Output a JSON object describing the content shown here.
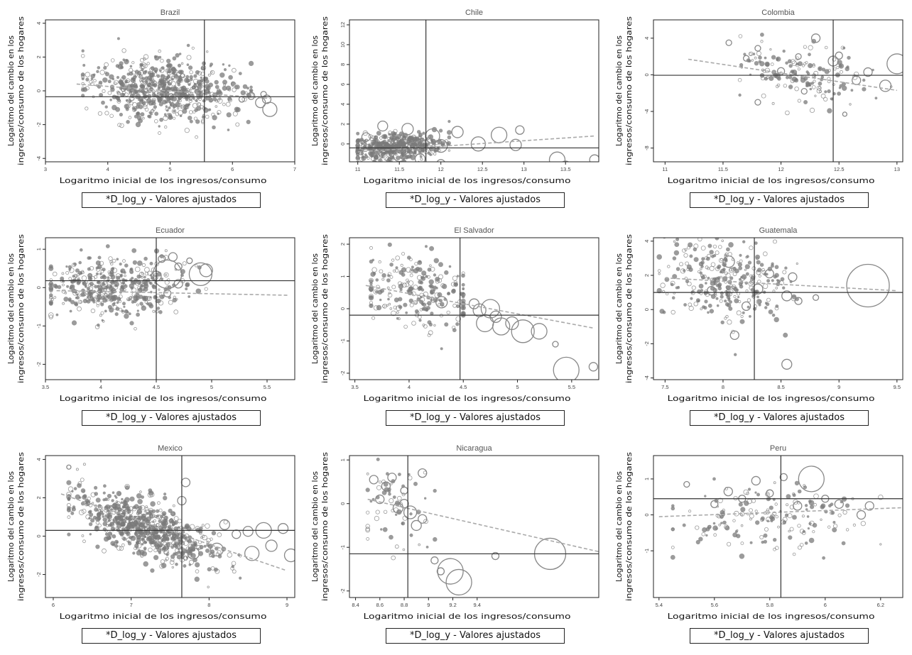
{
  "chart_data": [
    {
      "type": "scatter",
      "title": "Brazil",
      "xlabel": "Logaritmo inicial de los ingresos/consumo",
      "ylabel": "Logaritmo del cambio en los ingresos/consumo de los hogares",
      "legend": "*D_log_y -  Valores ajustados",
      "xlim": [
        3,
        7
      ],
      "ylim": [
        -4.2,
        4.2
      ],
      "xticks": [
        "3",
        "4",
        "5",
        "6",
        "7"
      ],
      "yticks": [
        "-4",
        "-2",
        "0",
        "2",
        "4"
      ],
      "vline": 5.55,
      "hline": -0.35,
      "fit": {
        "x": [
          3.5,
          6.6
        ],
        "y": [
          0.4,
          -0.45
        ]
      },
      "cloud": {
        "cx": 4.9,
        "cy": 0.1,
        "sx": 0.55,
        "sy": 0.9,
        "n": 650,
        "x0": 3.6,
        "x1": 6.3
      },
      "bubbles": [
        [
          6.15,
          -0.5,
          4
        ],
        [
          6.3,
          -0.3,
          5
        ],
        [
          6.45,
          -0.7,
          7
        ],
        [
          6.6,
          -1.1,
          10
        ],
        [
          6.5,
          -0.2,
          4
        ],
        [
          6.55,
          -0.5,
          6
        ]
      ],
      "grid": false,
      "legend_position": "bottom"
    },
    {
      "type": "scatter",
      "title": "Chile",
      "xlabel": "Logaritmo inicial de los ingresos/consumo",
      "ylabel": "Logaritmo del cambio en los ingresos/consumo de los hogares",
      "legend": "*D_log_y -  Valores ajustados",
      "xlim": [
        10.9,
        13.9
      ],
      "ylim": [
        -1.8,
        12.5
      ],
      "xticks": [
        "11",
        "11.5",
        "12",
        "12.5",
        "13",
        "13.5"
      ],
      "yticks": [
        "0",
        "2",
        "4",
        "6",
        "8",
        "10",
        "12"
      ],
      "vline": 11.82,
      "hline": -0.4,
      "fit": {
        "x": [
          11,
          13.85
        ],
        "y": [
          -0.8,
          0.8
        ]
      },
      "cloud": {
        "cx": 11.45,
        "cy": -0.3,
        "sx": 0.28,
        "sy": 0.7,
        "n": 450,
        "x0": 11,
        "x1": 12.1
      },
      "bubbles": [
        [
          11.3,
          1.8,
          7
        ],
        [
          11.6,
          1.5,
          8
        ],
        [
          11.9,
          0.8,
          10
        ],
        [
          12.0,
          -0.2,
          9
        ],
        [
          12.2,
          1.2,
          8
        ],
        [
          12.45,
          0.0,
          10
        ],
        [
          12.7,
          0.9,
          11
        ],
        [
          12.9,
          -0.1,
          8
        ],
        [
          12.95,
          1.4,
          6
        ],
        [
          12.0,
          -2.0,
          6
        ],
        [
          11.75,
          -1.5,
          7
        ],
        [
          13.4,
          -1.6,
          11
        ],
        [
          13.5,
          -2.3,
          8
        ],
        [
          13.85,
          -1.6,
          7
        ],
        [
          11.1,
          0.7,
          6
        ],
        [
          11.5,
          -1.2,
          8
        ]
      ],
      "grid": false,
      "legend_position": "bottom"
    },
    {
      "type": "scatter",
      "title": "Colombia",
      "xlabel": "Logaritmo inicial de los ingresos/consumo",
      "ylabel": "Logaritmo del cambio en los ingresos/consumo de los hogares",
      "legend": "*D_log_y -  Valores ajustados",
      "xlim": [
        10.9,
        13.05
      ],
      "ylim": [
        -9.5,
        6
      ],
      "xticks": [
        "11",
        "11.5",
        "12",
        "12.5",
        "13"
      ],
      "yticks": [
        "-8",
        "-4",
        "0",
        "4"
      ],
      "vline": 12.45,
      "hline": -0.05,
      "fit": {
        "x": [
          11.2,
          13.0
        ],
        "y": [
          1.7,
          -1.7
        ]
      },
      "cloud": {
        "cx": 12.2,
        "cy": 0,
        "sx": 0.3,
        "sy": 1.8,
        "n": 160,
        "x0": 11.55,
        "x1": 12.95
      },
      "bubbles": [
        [
          11.55,
          3.5,
          4
        ],
        [
          11.8,
          2.9,
          4
        ],
        [
          12.0,
          0.4,
          5
        ],
        [
          12.3,
          4.0,
          6
        ],
        [
          12.45,
          1.5,
          7
        ],
        [
          12.5,
          2.1,
          5
        ],
        [
          12.75,
          0.3,
          6
        ],
        [
          12.9,
          -1.2,
          8
        ],
        [
          13.0,
          1.2,
          14
        ],
        [
          11.8,
          -3.0,
          4
        ],
        [
          12.2,
          -1.8,
          4
        ],
        [
          12.55,
          -4.3,
          3
        ],
        [
          12.65,
          -0.6,
          6
        ],
        [
          12.15,
          2.0,
          4
        ],
        [
          11.7,
          1.8,
          4
        ]
      ],
      "grid": false,
      "legend_position": "bottom"
    },
    {
      "type": "scatter",
      "title": "Ecuador",
      "xlabel": "Logaritmo inicial de los ingresos/consumo",
      "ylabel": "Logaritmo del cambio en los ingresos/consumo de los hogares",
      "legend": "*D_log_y -  Valores ajustados",
      "xlim": [
        3.5,
        5.75
      ],
      "ylim": [
        -2.4,
        1.3
      ],
      "xticks": [
        "3.5",
        "4",
        "4.5",
        "5",
        "5.5"
      ],
      "yticks": [
        "-2",
        "-1",
        "0",
        "1"
      ],
      "vline": 4.5,
      "hline": 0.18,
      "fit": {
        "x": [
          3.6,
          5.7
        ],
        "y": [
          -0.08,
          -0.2
        ]
      },
      "cloud": {
        "cx": 4.1,
        "cy": 0.0,
        "sx": 0.32,
        "sy": 0.35,
        "n": 430,
        "x0": 3.55,
        "x1": 4.95
      },
      "bubbles": [
        [
          4.6,
          0.35,
          20
        ],
        [
          4.65,
          0.8,
          6
        ],
        [
          4.55,
          0.75,
          5
        ],
        [
          4.9,
          0.35,
          16
        ],
        [
          4.95,
          0.45,
          9
        ],
        [
          4.7,
          0.55,
          5
        ],
        [
          4.6,
          -0.15,
          5
        ],
        [
          4.8,
          0.7,
          4
        ],
        [
          4.5,
          0.3,
          7
        ],
        [
          4.7,
          0.1,
          6
        ]
      ],
      "grid": false,
      "legend_position": "bottom"
    },
    {
      "type": "scatter",
      "title": "El Salvador",
      "xlabel": "Logaritmo inicial de los ingresos/consumo",
      "ylabel": "Logaritmo del cambio en los ingresos/consumo de los hogares",
      "legend": "*D_log_y -  Valores ajustados",
      "xlim": [
        3.45,
        5.75
      ],
      "ylim": [
        -2.2,
        2.2
      ],
      "xticks": [
        "3.5",
        "4",
        "4.5",
        "5",
        "5.5"
      ],
      "yticks": [
        "-2",
        "-1",
        "0",
        "1",
        "2"
      ],
      "vline": 4.47,
      "hline": -0.2,
      "fit": {
        "x": [
          3.6,
          5.7
        ],
        "y": [
          0.72,
          -0.6
        ]
      },
      "cloud": {
        "cx": 4.1,
        "cy": 0.5,
        "sx": 0.28,
        "sy": 0.6,
        "n": 240,
        "x0": 3.65,
        "x1": 4.5
      },
      "bubbles": [
        [
          4.65,
          -0.05,
          9
        ],
        [
          4.75,
          0.0,
          13
        ],
        [
          4.7,
          -0.45,
          12
        ],
        [
          4.85,
          -0.55,
          12
        ],
        [
          4.95,
          -0.45,
          9
        ],
        [
          5.05,
          -0.7,
          16
        ],
        [
          5.2,
          -0.7,
          11
        ],
        [
          5.35,
          -1.1,
          4
        ],
        [
          5.45,
          -1.9,
          18
        ],
        [
          5.7,
          -1.8,
          6
        ],
        [
          4.3,
          0.2,
          8
        ],
        [
          4.6,
          0.15,
          7
        ],
        [
          4.8,
          -0.25,
          8
        ]
      ],
      "grid": false,
      "legend_position": "bottom"
    },
    {
      "type": "scatter",
      "title": "Guatemala",
      "xlabel": "Logaritmo inicial de los ingresos/consumo",
      "ylabel": "Logaritmo del cambio en los ingresos/consumo de los hogares",
      "legend": "*D_log_y -  Valores ajustados",
      "xlim": [
        7.4,
        9.55
      ],
      "ylim": [
        -4.1,
        4.2
      ],
      "xticks": [
        "7.5",
        "8",
        "8.5",
        "9",
        "9.5"
      ],
      "yticks": [
        "-4",
        "-2",
        "0",
        "2",
        "4"
      ],
      "vline": 8.27,
      "hline": 1.0,
      "fit": {
        "x": [
          7.5,
          9.5
        ],
        "y": [
          1.85,
          1.1
        ]
      },
      "cloud": {
        "cx": 8.0,
        "cy": 1.6,
        "sx": 0.28,
        "sy": 1.3,
        "n": 300,
        "x0": 7.45,
        "x1": 8.75
      },
      "bubbles": [
        [
          8.4,
          2.1,
          6
        ],
        [
          8.6,
          1.9,
          6
        ],
        [
          8.55,
          0.8,
          7
        ],
        [
          8.65,
          0.5,
          5
        ],
        [
          8.8,
          0.7,
          4
        ],
        [
          9.25,
          1.4,
          30
        ],
        [
          8.55,
          -3.2,
          7
        ],
        [
          8.1,
          -1.5,
          6
        ],
        [
          8.05,
          2.8,
          8
        ],
        [
          8.3,
          1.2,
          7
        ],
        [
          7.9,
          1.1,
          6
        ],
        [
          8.2,
          0.2,
          6
        ]
      ],
      "grid": false,
      "legend_position": "bottom"
    },
    {
      "type": "scatter",
      "title": "Mexico",
      "xlabel": "Logaritmo inicial de los ingresos/consumo",
      "ylabel": "Logaritmo del cambio en los ingresos/consumo de los hogares",
      "legend": "*D_log_y -  Valores ajustados",
      "xlim": [
        5.9,
        9.1
      ],
      "ylim": [
        -3.2,
        4.2
      ],
      "xticks": [
        "6",
        "7",
        "8",
        "9"
      ],
      "yticks": [
        "-2",
        "0",
        "2",
        "4"
      ],
      "vline": 7.65,
      "hline": 0.3,
      "fit": {
        "x": [
          6.1,
          9.0
        ],
        "y": [
          2.2,
          -1.8
        ]
      },
      "cloud": {
        "cx": 7.2,
        "cy": 0.4,
        "sx": 0.45,
        "sy": 0.7,
        "n": 700,
        "x0": 6.2,
        "x1": 8.4
      },
      "bubbles": [
        [
          8.35,
          0.1,
          6
        ],
        [
          8.5,
          0.25,
          7
        ],
        [
          8.7,
          0.3,
          11
        ],
        [
          8.95,
          0.4,
          7
        ],
        [
          9.05,
          -1.0,
          9
        ],
        [
          8.55,
          -0.9,
          10
        ],
        [
          8.1,
          -0.7,
          9
        ],
        [
          8.2,
          0.6,
          7
        ],
        [
          7.8,
          -0.9,
          8
        ],
        [
          7.65,
          1.85,
          6
        ],
        [
          7.7,
          2.8,
          6
        ],
        [
          8.8,
          -0.5,
          8
        ],
        [
          6.2,
          3.6,
          3
        ]
      ],
      "grid": false,
      "legend_position": "bottom"
    },
    {
      "type": "scatter",
      "title": "Nicaragua",
      "xlabel": "Logaritmo inicial de los ingresos/consumo",
      "ylabel": "Logaritmo del cambio en los ingresos/consumo de los hogares",
      "legend": "*D_log_y -  Valores ajustados",
      "xlim": [
        8.35,
        10.4
      ],
      "ylim": [
        -2.15,
        1.1
      ],
      "xticks": [
        "8.4",
        "8.6",
        "8.8",
        "9",
        "9.2",
        "9.4"
      ],
      "yticks": [
        "-2",
        "-1",
        "0",
        "1"
      ],
      "vline": 8.83,
      "hline": -1.15,
      "fit": {
        "x": [
          8.5,
          10.4
        ],
        "y": [
          0.1,
          -1.1
        ]
      },
      "cloud": {
        "cx": 8.7,
        "cy": 0.0,
        "sx": 0.17,
        "sy": 0.5,
        "n": 60,
        "x0": 8.5,
        "x1": 9.3
      },
      "bubbles": [
        [
          8.85,
          -0.2,
          9
        ],
        [
          8.9,
          -0.5,
          7
        ],
        [
          8.95,
          -0.35,
          6
        ],
        [
          9.05,
          -1.3,
          5
        ],
        [
          9.1,
          -1.55,
          5
        ],
        [
          9.18,
          -1.55,
          18
        ],
        [
          9.25,
          -1.8,
          18
        ],
        [
          9.55,
          -1.2,
          5
        ],
        [
          10.0,
          -1.15,
          22
        ],
        [
          8.75,
          -0.1,
          7
        ],
        [
          8.65,
          0.4,
          6
        ],
        [
          8.8,
          0.0,
          6
        ],
        [
          8.6,
          0.1,
          6
        ],
        [
          8.7,
          0.6,
          6
        ],
        [
          8.55,
          0.55,
          6
        ],
        [
          8.8,
          0.3,
          5
        ],
        [
          8.95,
          0.7,
          6
        ]
      ],
      "grid": false,
      "legend_position": "bottom"
    },
    {
      "type": "scatter",
      "title": "Peru",
      "xlabel": "Logaritmo inicial de los ingresos/consumo",
      "ylabel": "Logaritmo del cambio en los ingresos/consumo de los hogares",
      "legend": "*D_log_y -  Valores ajustados",
      "xlim": [
        5.38,
        6.28
      ],
      "ylim": [
        -2.3,
        1.65
      ],
      "xticks": [
        "5.4",
        "5.6",
        "5.8",
        "6",
        "6.2"
      ],
      "yticks": [
        "-1",
        "0",
        "1"
      ],
      "vline": 5.84,
      "hline": 0.45,
      "fit": {
        "x": [
          5.4,
          6.28
        ],
        "y": [
          -0.05,
          0.2
        ]
      },
      "cloud": {
        "cx": 5.78,
        "cy": -0.05,
        "sx": 0.16,
        "sy": 0.45,
        "n": 170,
        "x0": 5.45,
        "x1": 6.2
      },
      "bubbles": [
        [
          5.95,
          1.0,
          18
        ],
        [
          5.75,
          0.95,
          6
        ],
        [
          5.85,
          1.05,
          5
        ],
        [
          5.65,
          0.65,
          6
        ],
        [
          5.7,
          0.45,
          5
        ],
        [
          5.8,
          0.6,
          5
        ],
        [
          6.0,
          0.45,
          5
        ],
        [
          6.05,
          0.3,
          6
        ],
        [
          6.13,
          0.0,
          6
        ],
        [
          6.16,
          0.25,
          6
        ],
        [
          5.6,
          0.3,
          5
        ],
        [
          5.9,
          0.25,
          6
        ],
        [
          5.5,
          0.85,
          4
        ]
      ],
      "grid": false,
      "legend_position": "bottom"
    }
  ]
}
